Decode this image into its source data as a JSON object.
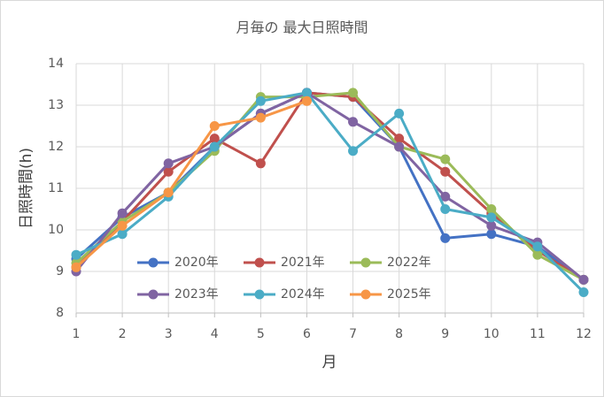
{
  "chart_data": {
    "type": "line",
    "title": "月毎の 最大日照時間",
    "x_label": "月",
    "y_label": "日照時間(h)",
    "x": [
      1,
      2,
      3,
      4,
      5,
      6,
      7,
      8,
      9,
      10,
      11,
      12
    ],
    "xlim": [
      1,
      12
    ],
    "xticks": [
      1,
      2,
      3,
      4,
      5,
      6,
      7,
      8,
      9,
      10,
      11,
      12
    ],
    "ylim": [
      8,
      14
    ],
    "yticks": [
      8,
      9,
      10,
      11,
      12,
      13,
      14
    ],
    "grid": true,
    "legend": "inside",
    "series": [
      {
        "name": "2020年",
        "color": "#4472c4",
        "values": [
          9.3,
          10.3,
          10.9,
          12.0,
          12.8,
          13.3,
          13.2,
          12.0,
          9.8,
          9.9,
          9.6,
          8.8
        ]
      },
      {
        "name": "2021年",
        "color": "#c0504d",
        "values": [
          9.1,
          10.2,
          11.4,
          12.2,
          11.6,
          13.3,
          13.2,
          12.2,
          11.4,
          10.4,
          9.5,
          8.8
        ]
      },
      {
        "name": "2022年",
        "color": "#9bbb59",
        "values": [
          9.2,
          10.2,
          10.9,
          11.9,
          13.2,
          13.2,
          13.3,
          12.0,
          11.7,
          10.5,
          9.4,
          8.8
        ]
      },
      {
        "name": "2023年",
        "color": "#8064a2",
        "values": [
          9.0,
          10.4,
          11.6,
          12.0,
          12.8,
          13.3,
          12.6,
          12.0,
          10.8,
          10.1,
          9.7,
          8.8
        ]
      },
      {
        "name": "2024年",
        "color": "#4bacc6",
        "values": [
          9.4,
          9.9,
          10.8,
          12.0,
          13.1,
          13.3,
          11.9,
          12.8,
          10.5,
          10.3,
          9.6,
          8.5
        ]
      },
      {
        "name": "2025年",
        "color": "#f79646",
        "values": [
          9.1,
          10.1,
          10.9,
          12.5,
          12.7,
          13.1,
          null,
          null,
          null,
          null,
          null,
          null
        ]
      }
    ]
  }
}
